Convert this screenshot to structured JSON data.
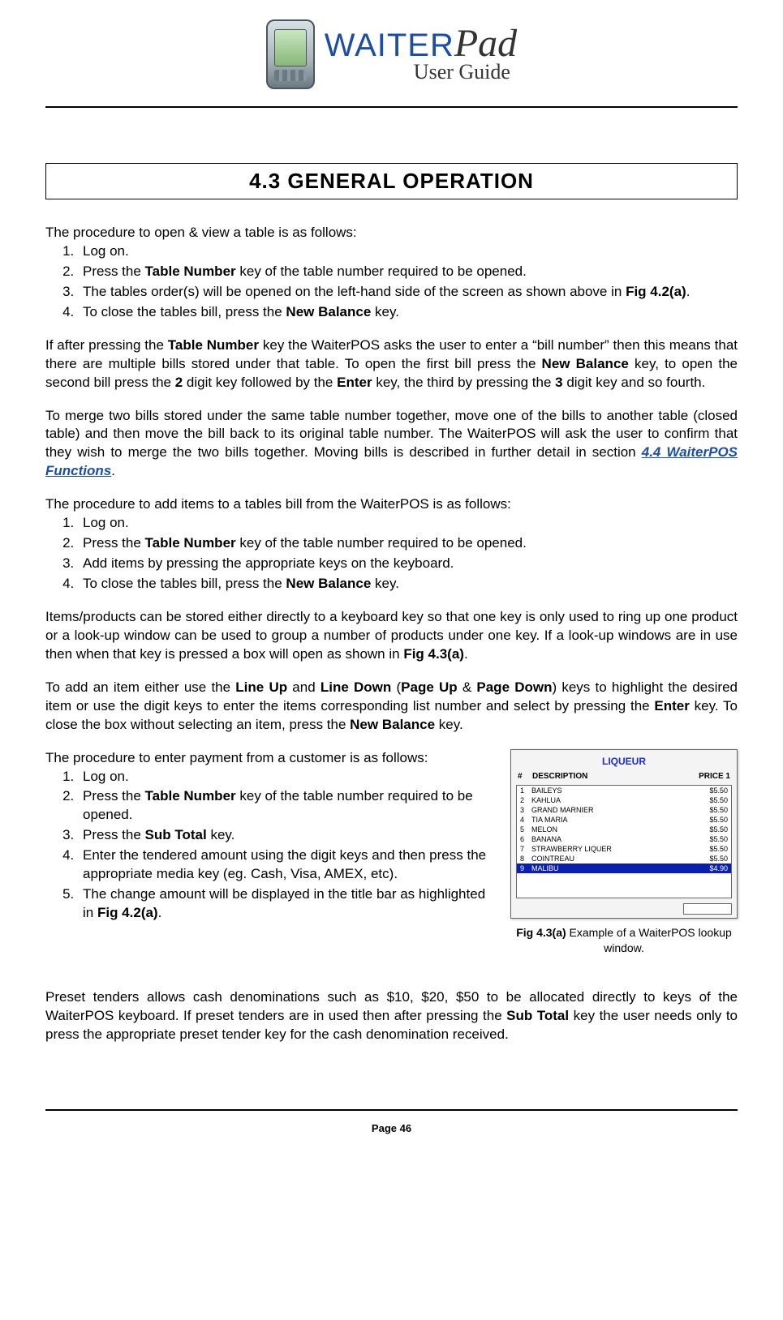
{
  "brand": {
    "main": "WAITER",
    "suffix": "Pad",
    "subtitle": "User Guide"
  },
  "section_title": "4.3      GENERAL OPERATION",
  "p1_intro": "The procedure to open & view a table is as follows:",
  "list1": {
    "i1": "Log on.",
    "i2a": "Press the ",
    "i2b": "Table Number",
    "i2c": " key of the table number required to be opened.",
    "i3a": "The tables order(s) will be opened on the left-hand side of the screen as shown above in ",
    "i3fig": "Fig 4.2(a)",
    "i3b": ".",
    "i4a": "To close the tables bill, press the ",
    "i4b": "New Balance",
    "i4c": " key."
  },
  "p2": {
    "t1": "If after pressing the ",
    "b1": "Table Number",
    "t2": " key the WaiterPOS asks the user to enter a “bill number” then this means that there are multiple bills stored under that table. To open the first bill press the ",
    "b2": "New Balance",
    "t3": " key, to open the second bill press the ",
    "b3": "2",
    "t4": " digit key followed by the ",
    "b4": "Enter",
    "t5": " key, the third by pressing the ",
    "b5": "3",
    "t6": " digit key and so fourth."
  },
  "p3": {
    "t1": "To merge two bills stored under the same table number together, move one of the bills to another table (closed table) and then move the bill back to its original table number. The WaiterPOS will ask the user to confirm that they wish to merge the two bills together. Moving bills is described in further detail in section ",
    "link": "4.4 WaiterPOS Functions",
    "t2": "."
  },
  "p4_intro": "The procedure to add items to a tables bill from the WaiterPOS is as follows:",
  "list2": {
    "i1": "Log on.",
    "i2a": "Press the ",
    "i2b": "Table Number",
    "i2c": " key of the table number required to be opened.",
    "i3": "Add items by pressing the appropriate keys on the keyboard.",
    "i4a": "To close the tables bill, press the ",
    "i4b": "New Balance",
    "i4c": " key."
  },
  "p5": {
    "t1": "Items/products can be stored either directly to a keyboard key so that one key is only used to ring up one product or a look-up window can be used to group a number of products under one key. If a look-up windows are in use then when that key is pressed a box will open as shown in ",
    "fig": "Fig 4.3(a)",
    "t2": "."
  },
  "p6": {
    "t1": "To add an item either use the ",
    "b1": "Line Up",
    "t2": " and ",
    "b2": "Line Down",
    "t3": " (",
    "b3": "Page Up",
    "t4": " & ",
    "b4": "Page Down",
    "t5": ") keys to highlight the desired item or use the digit keys to enter the items corresponding list number and select by pressing the ",
    "b5": "Enter",
    "t6": " key. To close the box without selecting an item, press the ",
    "b6": "New Balance",
    "t7": " key."
  },
  "p7_intro": "The procedure to enter payment from a customer is as follows:",
  "list3": {
    "i1": "Log on.",
    "i2a": "Press the ",
    "i2b": "Table Number",
    "i2c": " key of the table number required to be opened.",
    "i3a": "Press the ",
    "i3b": "Sub Total",
    "i3c": " key.",
    "i4": "Enter the tendered amount using the digit keys and then press the appropriate media key (eg. Cash, Visa, AMEX, etc).",
    "i5a": "The change amount will be displayed in the title bar as highlighted in ",
    "i5fig": "Fig 4.2(a)",
    "i5b": "."
  },
  "lookup": {
    "title": "LIQUEUR",
    "head_num": "#",
    "head_desc": "DESCRIPTION",
    "head_price": "PRICE 1",
    "rows": [
      {
        "n": "1",
        "d": "BAILEYS",
        "p": "$5.50"
      },
      {
        "n": "2",
        "d": "KAHLUA",
        "p": "$5.50"
      },
      {
        "n": "3",
        "d": "GRAND MARNIER",
        "p": "$5.50"
      },
      {
        "n": "4",
        "d": "TIA MARIA",
        "p": "$5.50"
      },
      {
        "n": "5",
        "d": "MELON",
        "p": "$5.50"
      },
      {
        "n": "6",
        "d": "BANANA",
        "p": "$5.50"
      },
      {
        "n": "7",
        "d": "STRAWBERRY LIQUER",
        "p": "$5.50"
      },
      {
        "n": "8",
        "d": "COINTREAU",
        "p": "$5.50"
      },
      {
        "n": "9",
        "d": "MALIBU",
        "p": "$4.90"
      }
    ],
    "selected_index": 8
  },
  "caption": {
    "fig": "Fig 4.3(a)",
    "text": " Example of a WaiterPOS lookup window."
  },
  "p8": {
    "t1": "Preset tenders allows cash denominations such as $10, $20, $50 to be allocated directly to keys of the WaiterPOS keyboard. If preset tenders are in used then after pressing the ",
    "b1": "Sub Total",
    "t2": " key the user needs only to press the appropriate preset tender key for the cash denomination received."
  },
  "page_number": "Page 46"
}
